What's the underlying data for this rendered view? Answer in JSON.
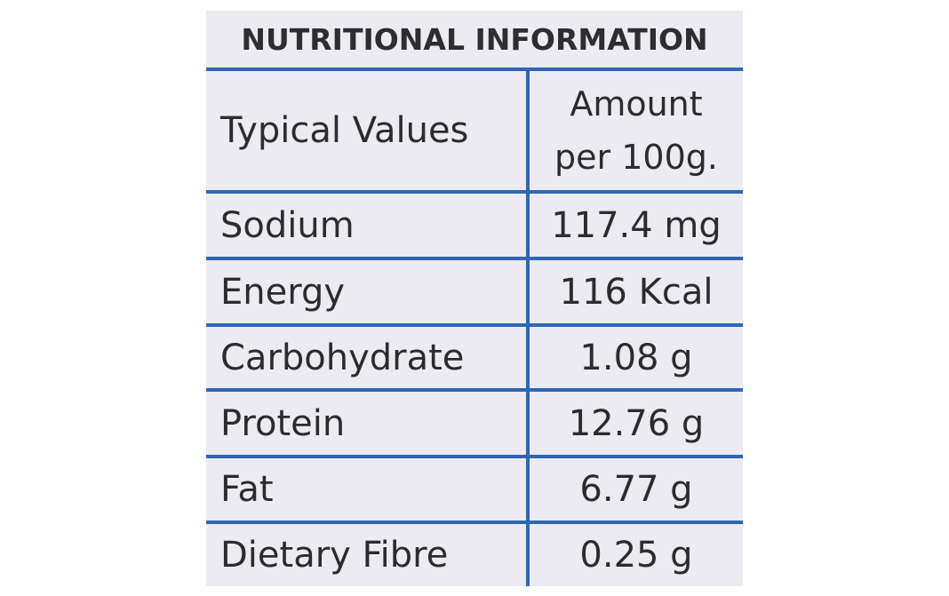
{
  "title": "NUTRITIONAL INFORMATION",
  "header": {
    "label": "Typical Values",
    "amount_line1": "Amount",
    "amount_line2": "per 100g."
  },
  "rows": [
    {
      "name": "Sodium",
      "value": "117.4 mg"
    },
    {
      "name": "Energy",
      "value": "116 Kcal"
    },
    {
      "name": "Carbohydrate",
      "value": "1.08 g"
    },
    {
      "name": "Protein",
      "value": "12.76 g"
    },
    {
      "name": "Fat",
      "value": "6.77 g"
    },
    {
      "name": "Dietary Fibre",
      "value": "0.25 g"
    }
  ],
  "colors": {
    "panel_background": "#ecebf1",
    "rule_color": "#2f66b4",
    "text_color": "#2c2c2e"
  }
}
